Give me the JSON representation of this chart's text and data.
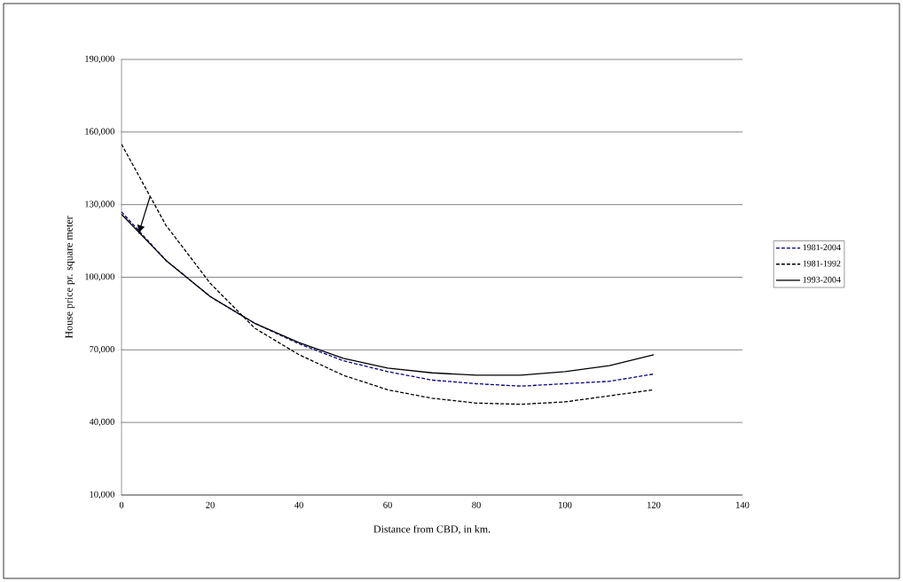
{
  "chart_data": {
    "type": "line",
    "xlabel": "Distance from CBD, in km.",
    "ylabel": "House price pr. square meter",
    "x": [
      0,
      10,
      20,
      30,
      40,
      50,
      60,
      70,
      80,
      90,
      100,
      110,
      120
    ],
    "xlim": [
      0,
      140
    ],
    "xticks": [
      0,
      20,
      40,
      60,
      80,
      100,
      120,
      140
    ],
    "ylim": [
      10000,
      190000
    ],
    "yticks": [
      {
        "value": 10000,
        "label": "10,000"
      },
      {
        "value": 40000,
        "label": "40,000"
      },
      {
        "value": 70000,
        "label": "70,000"
      },
      {
        "value": 100000,
        "label": "100,000"
      },
      {
        "value": 130000,
        "label": "130,000"
      },
      {
        "value": 160000,
        "label": "160,000"
      },
      {
        "value": 190000,
        "label": "190,000"
      }
    ],
    "grid": "y",
    "legend": "right",
    "marker": "none",
    "series": [
      {
        "name": "1981-2004",
        "color": "#000080",
        "line_style": "dashed",
        "values": [
          127000,
          107000,
          92000,
          81000,
          72500,
          65500,
          61000,
          57500,
          56000,
          55000,
          56000,
          57000,
          60000
        ]
      },
      {
        "name": "1981-1992",
        "color": "#000000",
        "line_style": "dashed",
        "values": [
          155000,
          121500,
          97500,
          79000,
          68000,
          59500,
          53500,
          50000,
          48000,
          47500,
          48500,
          51000,
          53500
        ]
      },
      {
        "name": "1993-2004",
        "color": "#000000",
        "line_style": "solid",
        "values": [
          126000,
          107000,
          92000,
          81000,
          73000,
          66500,
          62500,
          60500,
          59500,
          59500,
          61000,
          63500,
          68000
        ]
      }
    ]
  }
}
